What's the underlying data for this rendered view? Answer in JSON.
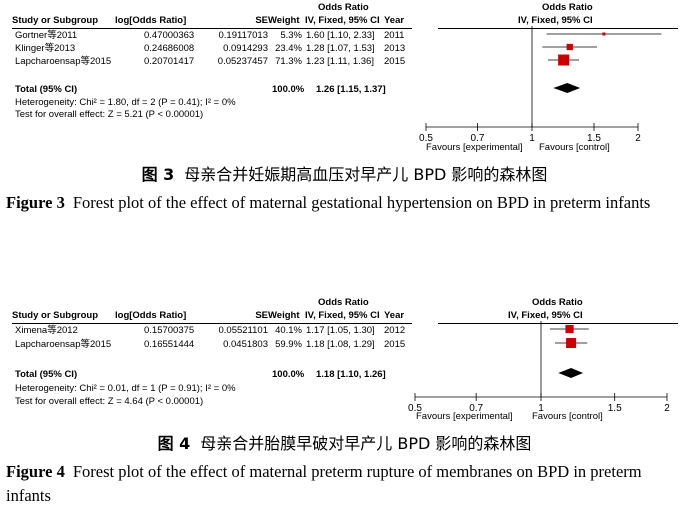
{
  "colors": {
    "marker": "#cc0000",
    "diamond": "#000000"
  },
  "headers": {
    "odds_ratio": "Odds Ratio",
    "study": "Study or Subgroup",
    "log_or": "log[Odds Ratio]",
    "se": "SE",
    "weight": "Weight",
    "ivfixed": "IV, Fixed, 95% CI",
    "year": "Year"
  },
  "figures": [
    {
      "studies": [
        {
          "name": "Gortner等2011",
          "log_or": "0.47000363",
          "se": "0.19117013",
          "weight": "5.3%",
          "ci": "1.60 [1.10, 2.33]",
          "year": "2011"
        },
        {
          "name": "Klinger等2013",
          "log_or": "0.24686008",
          "se": "0.0914293",
          "weight": "23.4%",
          "ci": "1.28 [1.07, 1.53]",
          "year": "2013"
        },
        {
          "name": "Lapcharoensap等2015",
          "log_or": "0.20701417",
          "se": "0.05237457",
          "weight": "71.3%",
          "ci": "1.23 [1.11, 1.36]",
          "year": "2015"
        }
      ],
      "total": {
        "label": "Total (95% CI)",
        "weight": "100.0%",
        "ci": "1.26 [1.15, 1.37]"
      },
      "heterogeneity": "Heterogeneity: Chi² = 1.80, df = 2 (P = 0.41); I² = 0%",
      "overall_effect": "Test for overall effect: Z = 5.21 (P < 0.00001)",
      "axis": {
        "ticks": [
          "0.5",
          "0.7",
          "1",
          "1.5",
          "2"
        ],
        "favours_left": "Favours [experimental]",
        "favours_right": "Favours [control]"
      },
      "caption_zh_label": "图 3",
      "caption_zh": "母亲合并妊娠期高血压对早产儿 BPD 影响的森林图",
      "caption_en_label": "Figure 3",
      "caption_en": "Forest plot of the effect of maternal gestational hypertension on BPD in preterm infants"
    },
    {
      "studies": [
        {
          "name": "Ximena等2012",
          "log_or": "0.15700375",
          "se": "0.05521101",
          "weight": "40.1%",
          "ci": "1.17 [1.05, 1.30]",
          "year": "2012"
        },
        {
          "name": "Lapcharoensap等2015",
          "log_or": "0.16551444",
          "se": "0.0451803",
          "weight": "59.9%",
          "ci": "1.18 [1.08, 1.29]",
          "year": "2015"
        }
      ],
      "total": {
        "label": "Total (95% CI)",
        "weight": "100.0%",
        "ci": "1.18 [1.10, 1.26]"
      },
      "heterogeneity": "Heterogeneity: Chi² = 0.01, df = 1 (P = 0.91); I² = 0%",
      "overall_effect": "Test for overall effect: Z = 4.64 (P < 0.00001)",
      "axis": {
        "ticks": [
          "0.5",
          "0.7",
          "1",
          "1.5",
          "2"
        ],
        "favours_left": "Favours [experimental]",
        "favours_right": "Favours [control]"
      },
      "caption_zh_label": "图 4",
      "caption_zh": "母亲合并胎膜早破对早产儿 BPD 影响的森林图",
      "caption_en_label": "Figure 4",
      "caption_en": "Forest plot of the effect of maternal preterm rupture of membranes on BPD in preterm infants"
    }
  ],
  "chart_data": [
    {
      "type": "forest",
      "axis_scale": "log",
      "xlim": [
        0.5,
        2
      ],
      "xticks": [
        0.5,
        0.7,
        1,
        1.5,
        2
      ],
      "studies": [
        {
          "name": "Gortner等2011",
          "or": 1.6,
          "ci_low": 1.1,
          "ci_high": 2.33,
          "weight": 5.3
        },
        {
          "name": "Klinger等2013",
          "or": 1.28,
          "ci_low": 1.07,
          "ci_high": 1.53,
          "weight": 23.4
        },
        {
          "name": "Lapcharoensap等2015",
          "or": 1.23,
          "ci_low": 1.11,
          "ci_high": 1.36,
          "weight": 71.3
        }
      ],
      "pooled": {
        "or": 1.26,
        "ci_low": 1.15,
        "ci_high": 1.37
      }
    },
    {
      "type": "forest",
      "axis_scale": "log",
      "xlim": [
        0.5,
        2
      ],
      "xticks": [
        0.5,
        0.7,
        1,
        1.5,
        2
      ],
      "studies": [
        {
          "name": "Ximena等2012",
          "or": 1.17,
          "ci_low": 1.05,
          "ci_high": 1.3,
          "weight": 40.1
        },
        {
          "name": "Lapcharoensap等2015",
          "or": 1.18,
          "ci_low": 1.08,
          "ci_high": 1.29,
          "weight": 59.9
        }
      ],
      "pooled": {
        "or": 1.18,
        "ci_low": 1.1,
        "ci_high": 1.26
      }
    }
  ]
}
